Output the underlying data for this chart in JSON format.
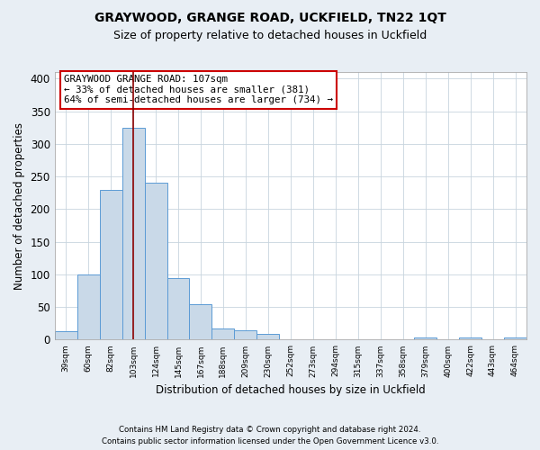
{
  "title": "GRAYWOOD, GRANGE ROAD, UCKFIELD, TN22 1QT",
  "subtitle": "Size of property relative to detached houses in Uckfield",
  "xlabel": "Distribution of detached houses by size in Uckfield",
  "ylabel": "Number of detached properties",
  "footer_lines": [
    "Contains HM Land Registry data © Crown copyright and database right 2024.",
    "Contains public sector information licensed under the Open Government Licence v3.0."
  ],
  "bin_labels": [
    "39sqm",
    "60sqm",
    "82sqm",
    "103sqm",
    "124sqm",
    "145sqm",
    "167sqm",
    "188sqm",
    "209sqm",
    "230sqm",
    "252sqm",
    "273sqm",
    "294sqm",
    "315sqm",
    "337sqm",
    "358sqm",
    "379sqm",
    "400sqm",
    "422sqm",
    "443sqm",
    "464sqm"
  ],
  "bar_heights": [
    13,
    100,
    230,
    325,
    240,
    95,
    55,
    17,
    14,
    9,
    0,
    0,
    0,
    0,
    0,
    0,
    3,
    0,
    3,
    0,
    3
  ],
  "bar_color": "#c9d9e8",
  "bar_edge_color": "#5b9bd5",
  "marker_bin_index": 3,
  "marker_color": "#8b0000",
  "annotation_title": "GRAYWOOD GRANGE ROAD: 107sqm",
  "annotation_line1": "← 33% of detached houses are smaller (381)",
  "annotation_line2": "64% of semi-detached houses are larger (734) →",
  "annotation_box_color": "#ffffff",
  "annotation_border_color": "#cc0000",
  "ylim": [
    0,
    410
  ],
  "yticks": [
    0,
    50,
    100,
    150,
    200,
    250,
    300,
    350,
    400
  ],
  "background_color": "#e8eef4",
  "plot_bg_color": "#ffffff",
  "grid_color": "#c8d4de",
  "title_fontsize": 10,
  "subtitle_fontsize": 9
}
